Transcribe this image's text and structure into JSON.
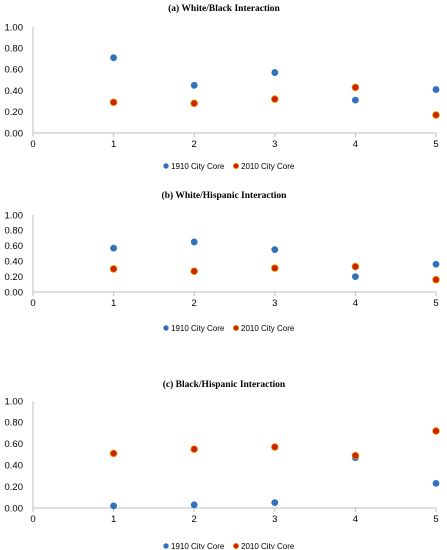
{
  "colors": {
    "series1": "#2f73bb",
    "series2": "#cc2200",
    "series2_edge": "#e8a000",
    "axis": "#bfbfbf"
  },
  "chart_data": [
    {
      "type": "scatter",
      "title": "(a) White/Black Interaction",
      "xlim": [
        0,
        5
      ],
      "ylim": [
        0,
        1
      ],
      "xticks": [
        "0",
        "1",
        "2",
        "3",
        "4",
        "5"
      ],
      "yticks": [
        "0.00",
        "0.20",
        "0.40",
        "0.60",
        "0.80",
        "1.00"
      ],
      "legend": "bottom-center",
      "series": [
        {
          "name": "1910 City Core",
          "x": [
            1,
            2,
            3,
            4,
            5
          ],
          "y": [
            0.71,
            0.45,
            0.57,
            0.31,
            0.41
          ]
        },
        {
          "name": "2010 City Core",
          "x": [
            1,
            2,
            3,
            4,
            5
          ],
          "y": [
            0.29,
            0.28,
            0.32,
            0.43,
            0.17
          ]
        }
      ]
    },
    {
      "type": "scatter",
      "title": "(b) White/Hispanic Interaction",
      "xlim": [
        0,
        5
      ],
      "ylim": [
        0,
        1
      ],
      "xticks": [
        "0",
        "1",
        "2",
        "3",
        "4",
        "5"
      ],
      "yticks": [
        "0.00",
        "0.20",
        "0.40",
        "0.60",
        "0.80",
        "1.00"
      ],
      "legend": "bottom-center",
      "series": [
        {
          "name": "1910 City Core",
          "x": [
            1,
            2,
            3,
            4,
            5
          ],
          "y": [
            0.57,
            0.65,
            0.55,
            0.2,
            0.36
          ]
        },
        {
          "name": "2010 City Core",
          "x": [
            1,
            2,
            3,
            4,
            5
          ],
          "y": [
            0.3,
            0.27,
            0.31,
            0.33,
            0.16
          ]
        }
      ]
    },
    {
      "type": "scatter",
      "title": "(c) Black/Hispanic Interaction",
      "xlim": [
        0,
        5
      ],
      "ylim": [
        0,
        1
      ],
      "xticks": [
        "0",
        "1",
        "2",
        "3",
        "4",
        "5"
      ],
      "yticks": [
        "0.00",
        "0.20",
        "0.40",
        "0.60",
        "0.80",
        "1.00"
      ],
      "legend": "bottom-center",
      "series": [
        {
          "name": "1910 City Core",
          "x": [
            1,
            2,
            3,
            4,
            5
          ],
          "y": [
            0.02,
            0.03,
            0.05,
            0.47,
            0.23
          ]
        },
        {
          "name": "2010 City Core",
          "x": [
            1,
            2,
            3,
            4,
            5
          ],
          "y": [
            0.51,
            0.55,
            0.57,
            0.49,
            0.72
          ]
        }
      ]
    }
  ]
}
